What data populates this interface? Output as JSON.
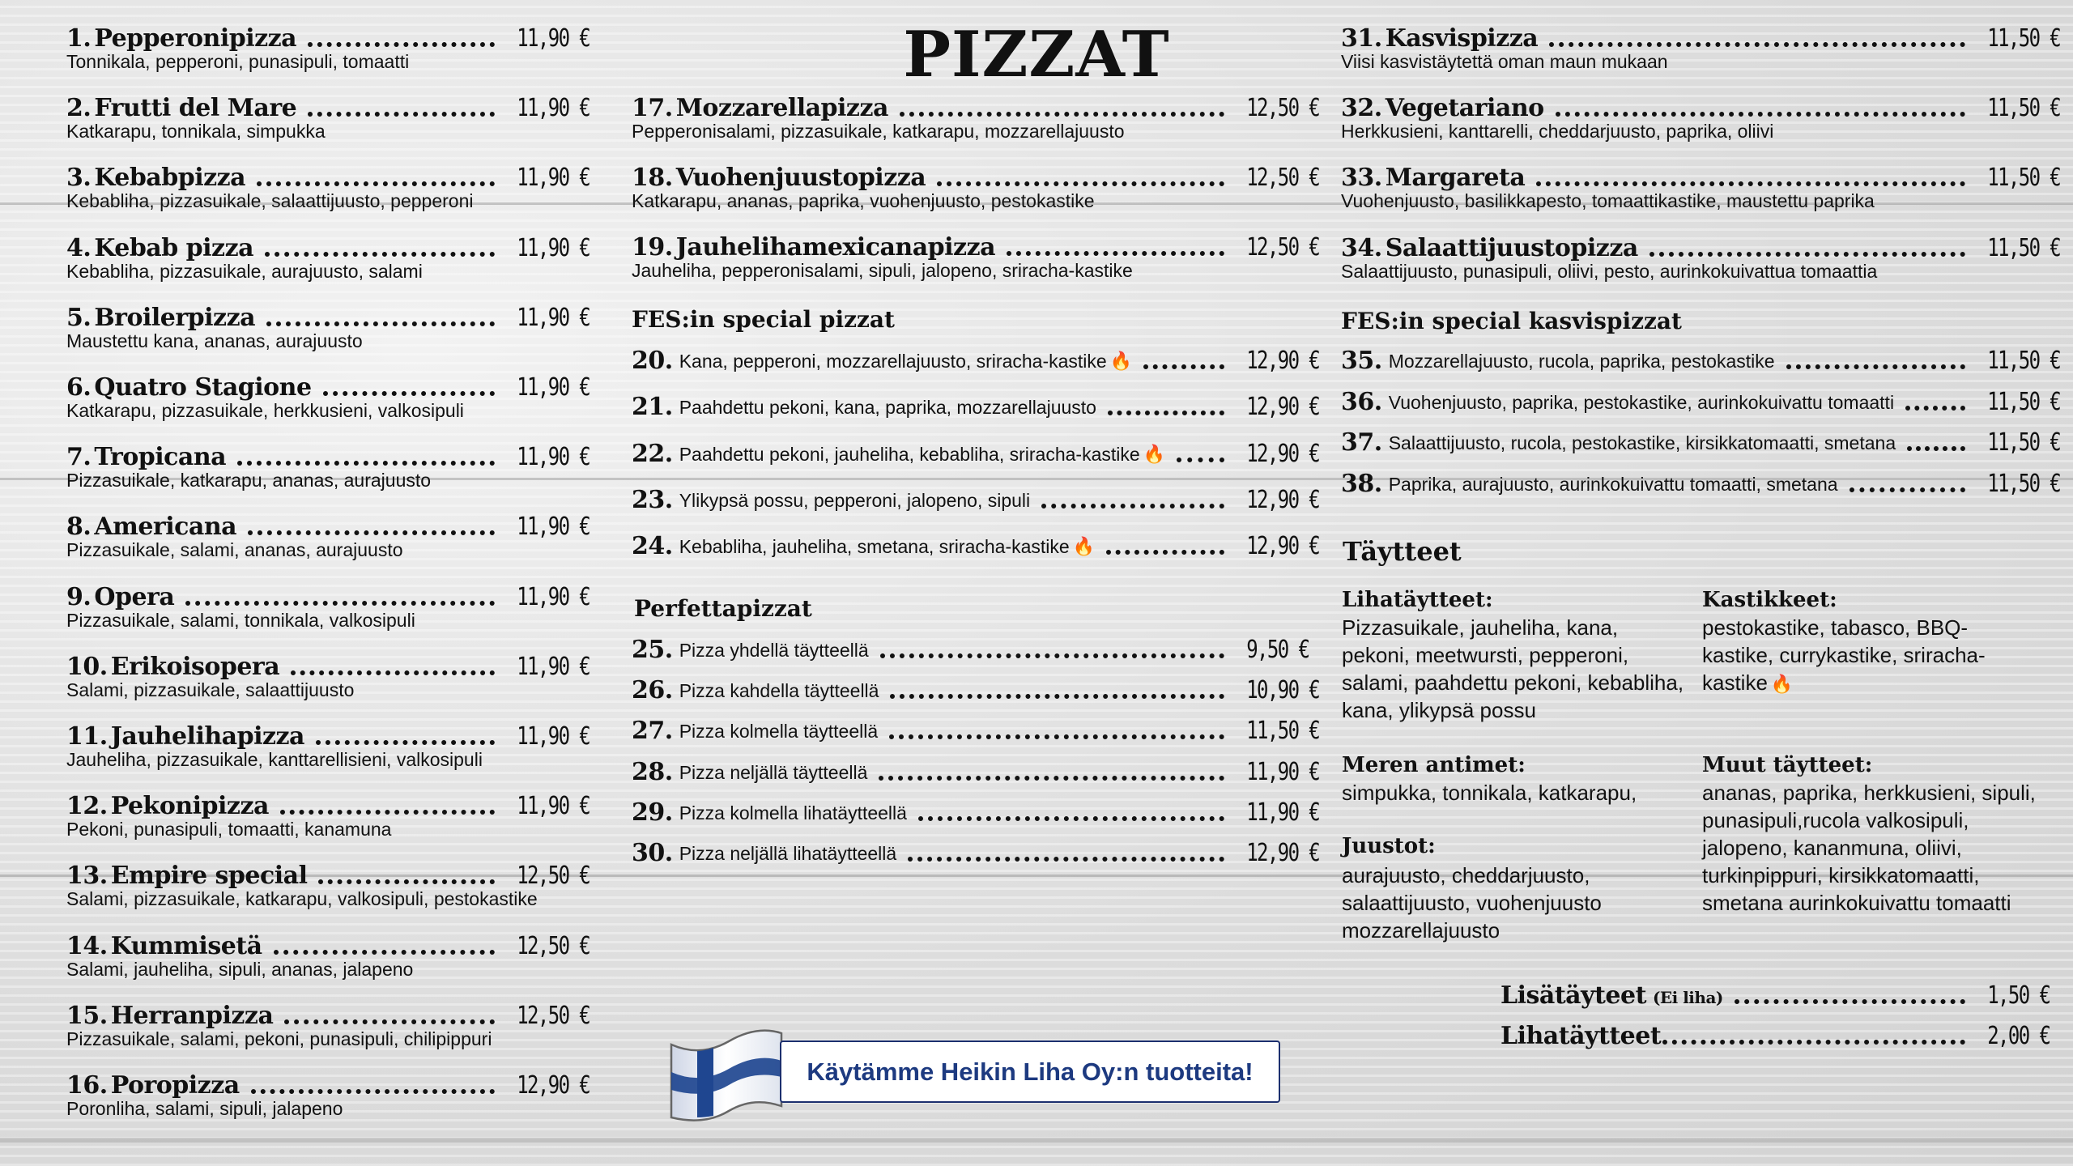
{
  "title": "PIZZAT",
  "colors": {
    "text": "#111111",
    "banner_text": "#1d3a80",
    "flag_blue": "#1f4690",
    "fire": "#e8561a"
  },
  "left_items": [
    {
      "num": "1.",
      "name": "Pepperonipizza",
      "price": "11,90 €",
      "desc": "Tonnikala, pepperoni, punasipuli, tomaatti"
    },
    {
      "num": "2.",
      "name": "Frutti del Mare",
      "price": "11,90 €",
      "desc": "Katkarapu, tonnikala, simpukka"
    },
    {
      "num": "3.",
      "name": "Kebabpizza",
      "price": "11,90 €",
      "desc": "Kebabliha, pizzasuikale, salaattijuusto, pepperoni"
    },
    {
      "num": "4.",
      "name": "Kebab pizza",
      "price": "11,90 €",
      "desc": "Kebabliha, pizzasuikale, aurajuusto, salami"
    },
    {
      "num": "5.",
      "name": "Broilerpizza",
      "price": "11,90 €",
      "desc": "Maustettu kana, ananas, aurajuusto"
    },
    {
      "num": "6.",
      "name": "Quatro Stagione",
      "price": "11,90 €",
      "desc": "Katkarapu, pizzasuikale, herkkusieni, valkosipuli"
    },
    {
      "num": "7.",
      "name": "Tropicana",
      "price": "11,90 €",
      "desc": "Pizzasuikale, katkarapu, ananas, aurajuusto"
    },
    {
      "num": "8.",
      "name": "Americana",
      "price": "11,90 €",
      "desc": "Pizzasuikale, salami, ananas, aurajuusto"
    },
    {
      "num": "9.",
      "name": "Opera",
      "price": "11,90 €",
      "desc": "Pizzasuikale, salami, tonnikala, valkosipuli"
    },
    {
      "num": "10.",
      "name": "Erikoisopera",
      "price": "11,90 €",
      "desc": "Salami, pizzasuikale, salaattijuusto"
    },
    {
      "num": "11.",
      "name": "Jauhelihapizza",
      "price": "11,90 €",
      "desc": "Jauheliha, pizzasuikale, kanttarellisieni, valkosipuli"
    },
    {
      "num": "12.",
      "name": "Pekonipizza",
      "price": "11,90 €",
      "desc": "Pekoni, punasipuli, tomaatti, kanamuna"
    },
    {
      "num": "13.",
      "name": "Empire special",
      "price": "12,50 €",
      "desc": "Salami, pizzasuikale, katkarapu, valkosipuli, pestokastike"
    },
    {
      "num": "14.",
      "name": "Kummisetä",
      "price": "12,50 €",
      "desc": "Salami, jauheliha, sipuli, ananas, jalapeno"
    },
    {
      "num": "15.",
      "name": "Herranpizza",
      "price": "12,50 €",
      "desc": "Pizzasuikale, salami, pekoni, punasipuli, chilipippuri"
    },
    {
      "num": "16.",
      "name": "Poropizza",
      "price": "12,90 €",
      "desc": "Poronliha, salami, sipuli, jalapeno"
    }
  ],
  "mid_items": [
    {
      "num": "17.",
      "name": "Mozzarellapizza",
      "price": "12,50 €",
      "desc": "Pepperonisalami, pizzasuikale, katkarapu, mozzarellajuusto"
    },
    {
      "num": "18.",
      "name": "Vuohenjuustopizza",
      "price": "12,50 €",
      "desc": "Katkarapu, ananas, paprika, vuohenjuusto, pestokastike"
    },
    {
      "num": "19.",
      "name": "Jauhelihamexicanapizza",
      "price": "12,50 €",
      "desc": "Jauheliha, pepperonisalami, sipuli, jalopeno, sriracha-kastike"
    }
  ],
  "fes_heading": "FES:in special pizzat",
  "fes_items": [
    {
      "num": "20.",
      "desc": "Kana, pepperoni, mozzarellajuusto, sriracha-kastike",
      "price": "12,90 €",
      "spicy": true
    },
    {
      "num": "21.",
      "desc": "Paahdettu pekoni, kana, paprika, mozzarellajuusto",
      "price": "12,90 €",
      "spicy": false
    },
    {
      "num": "22.",
      "desc": "Paahdettu pekoni, jauheliha, kebabliha, sriracha-kastike",
      "price": "12,90 €",
      "spicy": true
    },
    {
      "num": "23.",
      "desc": "Ylikypsä possu, pepperoni, jalopeno, sipuli",
      "price": "12,90 €",
      "spicy": false
    },
    {
      "num": "24.",
      "desc": "Kebabliha, jauheliha, smetana, sriracha-kastike",
      "price": "12,90 €",
      "spicy": true
    }
  ],
  "perfetta_heading": "Perfettapizzat",
  "perfetta_items": [
    {
      "num": "25.",
      "desc": "Pizza yhdellä täytteellä",
      "price": "9,50 €"
    },
    {
      "num": "26.",
      "desc": "Pizza kahdella täytteellä",
      "price": "10,90 €"
    },
    {
      "num": "27.",
      "desc": "Pizza kolmella täytteellä",
      "price": "11,50 €"
    },
    {
      "num": "28.",
      "desc": "Pizza neljällä täytteellä",
      "price": "11,90 €"
    },
    {
      "num": "29.",
      "desc": "Pizza kolmella lihatäytteellä",
      "price": "11,90 €"
    },
    {
      "num": "30.",
      "desc": "Pizza neljällä lihatäytteellä",
      "price": "12,90 €"
    }
  ],
  "right_items": [
    {
      "num": "31.",
      "name": "Kasvispizza",
      "price": "11,50 €",
      "desc": "Viisi kasvistäytettä oman maun mukaan"
    },
    {
      "num": "32.",
      "name": "Vegetariano",
      "price": "11,50 €",
      "desc": "Herkkusieni, kanttarelli, cheddarjuusto, paprika, oliivi"
    },
    {
      "num": "33.",
      "name": "Margareta",
      "price": "11,50 €",
      "desc": "Vuohenjuusto, basilikkapesto, tomaattikastike, maustettu paprika"
    },
    {
      "num": "34.",
      "name": "Salaattijuustopizza",
      "price": "11,50 €",
      "desc": "Salaattijuusto, punasipuli, oliivi, pesto, aurinkokuivattua tomaattia"
    }
  ],
  "fes_veg_heading": "FES:in special kasvispizzat",
  "fes_veg_items": [
    {
      "num": "35.",
      "desc": "Mozzarellajuusto, rucola, paprika, pestokastike",
      "price": "11,50 €"
    },
    {
      "num": "36.",
      "desc": "Vuohenjuusto, paprika, pestokastike, aurinkokuivattu tomaatti",
      "price": "11,50 €"
    },
    {
      "num": "37.",
      "desc": "Salaattijuusto, rucola, pestokastike, kirsikkatomaatti, smetana",
      "price": "11,50 €"
    },
    {
      "num": "38.",
      "desc": "Paprika, aurajuusto, aurinkokuivattu tomaatti, smetana",
      "price": "11,50 €"
    }
  ],
  "toppings": {
    "heading": "Täytteet",
    "meat": {
      "label": "Lihatäytteet:",
      "text": "Pizzasuikale, jauheliha, kana, pekoni, meetwursti, pepperoni, salami, paahdettu pekoni, kebabliha, kana, ylikypsä possu"
    },
    "sauces": {
      "label": "Kastikkeet:",
      "text": "pestokastike, tabasco, BBQ-kastike, currykastike, sriracha-kastike"
    },
    "seafood": {
      "label": "Meren antimet:",
      "text": "simpukka, tonnikala, katkarapu,"
    },
    "cheese": {
      "label": "Juustot:",
      "text": "aurajuusto, cheddarjuusto, salaattijuusto, vuohenjuusto mozzarellajuusto"
    },
    "other": {
      "label": "Muut täytteet:",
      "text": "ananas, paprika, herkkusieni, sipuli, punasipuli,rucola valkosipuli, jalopeno, kananmuna, oliivi, turkinpippuri, kirsikkatomaatti, smetana aurinkokuivattu tomaatti"
    }
  },
  "extras": [
    {
      "name": "Lisätäyteet",
      "note": "(Ei liha)",
      "price": "1,50 €"
    },
    {
      "name": "Lihatäytteet",
      "note": "",
      "price": "2,00 €"
    }
  ],
  "banner": {
    "text": "Käytämme Heikin Liha Oy:n tuotteita!",
    "flag": "finland-flag"
  }
}
